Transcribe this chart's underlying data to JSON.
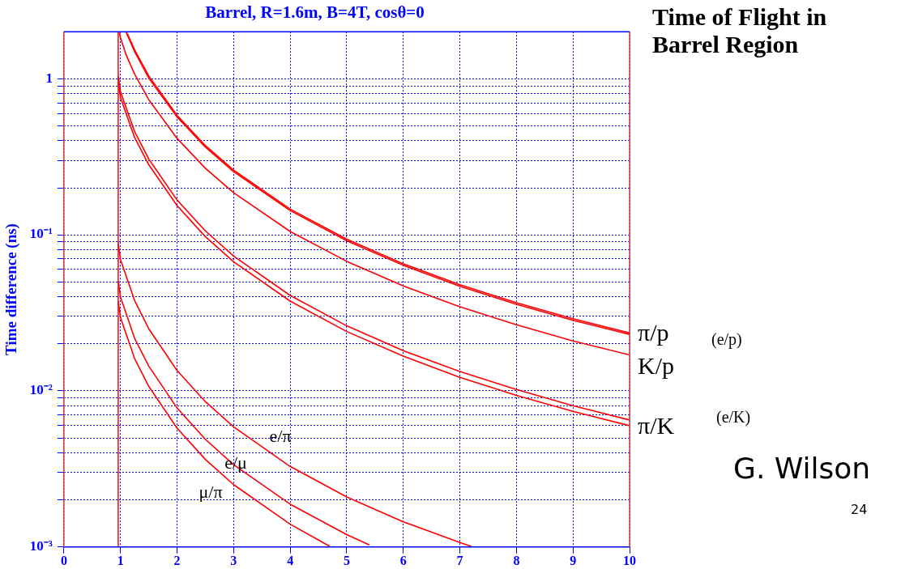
{
  "chart_data": {
    "type": "line",
    "title": "Barrel, R=1.6m, B=4T, cosθ=0",
    "ylabel": "Time difference (ns)",
    "annotations": [
      "Time of Flight in Barrel Region",
      "G. Wilson",
      "24",
      "(e/p)",
      "(e/K)"
    ],
    "log": "y",
    "grid": true,
    "legend": false,
    "marker": "none",
    "line_style": "solid",
    "xlim": [
      0,
      10
    ],
    "xticks": [
      0,
      1,
      2,
      3,
      4,
      5,
      6,
      7,
      8,
      9,
      10
    ],
    "ylim": [
      0.001,
      2
    ],
    "yticks": [
      {
        "value": 0.001,
        "label": "10⁻³"
      },
      {
        "value": 0.002,
        "label": null
      },
      {
        "value": 0.003,
        "label": null
      },
      {
        "value": 0.004,
        "label": null
      },
      {
        "value": 0.005,
        "label": null
      },
      {
        "value": 0.006,
        "label": null
      },
      {
        "value": 0.007,
        "label": null
      },
      {
        "value": 0.008,
        "label": null
      },
      {
        "value": 0.009,
        "label": null
      },
      {
        "value": 0.01,
        "label": "10⁻²"
      },
      {
        "value": 0.02,
        "label": null
      },
      {
        "value": 0.03,
        "label": null
      },
      {
        "value": 0.04,
        "label": null
      },
      {
        "value": 0.05,
        "label": null
      },
      {
        "value": 0.06,
        "label": null
      },
      {
        "value": 0.07,
        "label": null
      },
      {
        "value": 0.08,
        "label": null
      },
      {
        "value": 0.09,
        "label": null
      },
      {
        "value": 0.1,
        "label": "10⁻¹"
      },
      {
        "value": 0.2,
        "label": null
      },
      {
        "value": 0.3,
        "label": null
      },
      {
        "value": 0.4,
        "label": null
      },
      {
        "value": 0.5,
        "label": null
      },
      {
        "value": 0.6,
        "label": null
      },
      {
        "value": 0.7,
        "label": null
      },
      {
        "value": 0.8,
        "label": null
      },
      {
        "value": 0.9,
        "label": null
      },
      1
    ],
    "ref_lines": [
      {
        "axis": "x",
        "value": 0.96,
        "color": "#ff0000"
      }
    ],
    "series": [
      {
        "name": "π/p",
        "color": "#ff0000",
        "x": [
          1.1,
          1.25,
          1.5,
          2,
          2.5,
          3,
          4,
          5,
          6,
          7,
          8,
          9,
          10
        ],
        "values": [
          1.99,
          1.49,
          1.01,
          0.569,
          0.365,
          0.254,
          0.143,
          0.0916,
          0.0637,
          0.0468,
          0.0359,
          0.0283,
          0.023
        ]
      },
      {
        "color": "#ff0000",
        "x": [
          1.12,
          1.25,
          1.5,
          2,
          2.5,
          3,
          4,
          5,
          6,
          7,
          8,
          9,
          10
        ],
        "values": [
          1.95,
          1.53,
          1.04,
          0.582,
          0.373,
          0.26,
          0.146,
          0.0937,
          0.0652,
          0.0479,
          0.0367,
          0.029,
          0.0235
        ]
      },
      {
        "name": "K/p",
        "color": "#ff0000",
        "x": [
          0.98,
          1,
          1.1,
          1.25,
          1.5,
          2,
          2.5,
          3,
          4,
          5,
          6,
          7,
          8,
          9,
          10
        ],
        "values": [
          1.97,
          1.83,
          1.42,
          1.07,
          0.734,
          0.415,
          0.267,
          0.186,
          0.105,
          0.0676,
          0.047,
          0.0346,
          0.0265,
          0.0209,
          0.017
        ]
      },
      {
        "name": "π/K",
        "color": "#ff0000",
        "x": [
          0.96,
          1,
          1.25,
          1.5,
          2,
          2.5,
          3,
          4,
          5,
          6,
          7,
          8,
          9,
          10
        ],
        "values": [
          0.956,
          0.755,
          0.42,
          0.281,
          0.154,
          0.0973,
          0.0672,
          0.0376,
          0.024,
          0.0167,
          0.0122,
          0.00936,
          0.00739,
          0.00599
        ]
      },
      {
        "color": "#ff0000",
        "x": [
          0.96,
          1,
          1.25,
          1.5,
          2,
          2.5,
          3,
          4,
          5,
          6,
          7,
          8,
          9,
          10
        ],
        "values": [
          1.04,
          0.825,
          0.458,
          0.306,
          0.167,
          0.106,
          0.0731,
          0.0409,
          0.0261,
          0.0181,
          0.0133,
          0.0102,
          0.00804,
          0.00651
        ]
      },
      {
        "name": "e/π",
        "color": "#ff0000",
        "x": [
          0.96,
          1,
          1.25,
          1.5,
          2,
          2.5,
          3,
          4,
          5,
          6,
          7,
          7.2
        ],
        "values": [
          0.0882,
          0.0694,
          0.0379,
          0.025,
          0.0135,
          0.00854,
          0.00588,
          0.00328,
          0.00209,
          0.00145,
          0.00107,
          0.00101
        ]
      },
      {
        "name": "e/μ",
        "color": "#ff0000",
        "x": [
          0.96,
          1,
          1.25,
          1.5,
          2,
          2.5,
          3,
          4,
          5,
          5.4
        ],
        "values": [
          0.0507,
          0.0399,
          0.0217,
          0.0144,
          0.00777,
          0.0049,
          0.00337,
          0.00188,
          0.0012,
          0.00103
        ]
      },
      {
        "name": "μ/π",
        "color": "#ff0000",
        "x": [
          0.96,
          1,
          1.25,
          1.5,
          2,
          2.5,
          3,
          4,
          4.7
        ],
        "values": [
          0.0375,
          0.0295,
          0.0161,
          0.0107,
          0.00577,
          0.00364,
          0.00251,
          0.0014,
          0.00101
        ]
      }
    ]
  }
}
